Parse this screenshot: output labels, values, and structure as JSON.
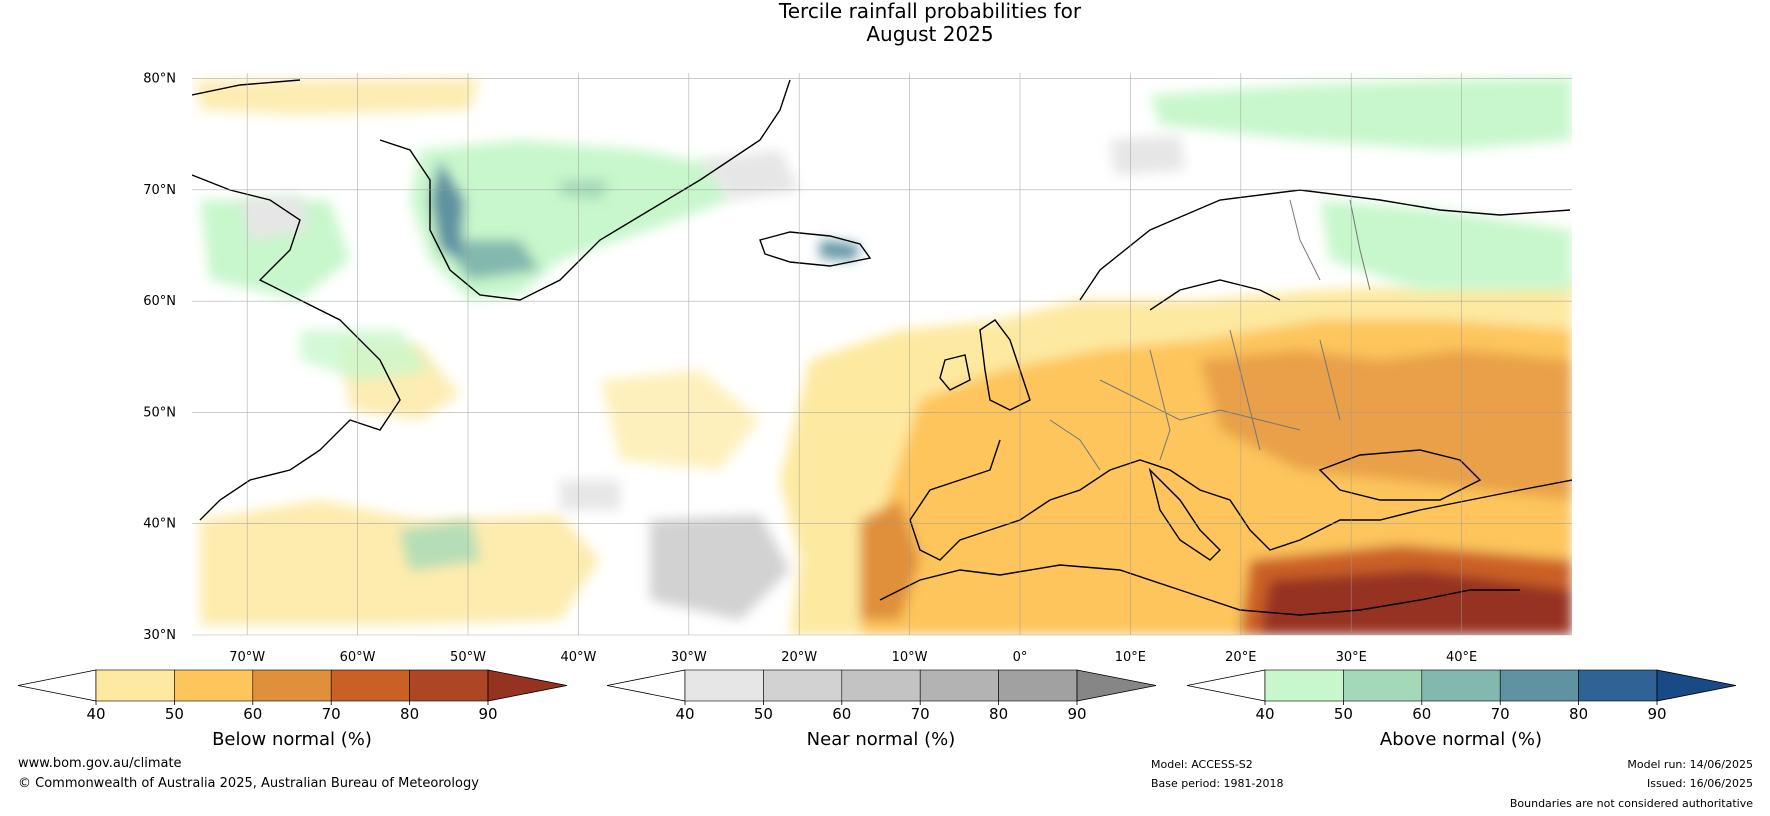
{
  "title": {
    "line1": "Tercile rainfall probabilities for",
    "line2": "August 2025"
  },
  "map": {
    "lon_range": [
      -75,
      50
    ],
    "lat_range": [
      30,
      80.5
    ],
    "lat_ticks": [
      "80°N",
      "70°N",
      "60°N",
      "50°N",
      "40°N",
      "30°N"
    ],
    "lon_ticks": [
      "70°W",
      "60°W",
      "50°W",
      "40°W",
      "30°W",
      "20°W",
      "10°W",
      "0°",
      "10°E",
      "20°E",
      "30°E",
      "40°E"
    ],
    "grid": true
  },
  "colorbars": [
    {
      "label": "Below normal (%)",
      "ticks": [
        "40",
        "50",
        "60",
        "70",
        "80",
        "90"
      ],
      "colors": [
        "#ffffff",
        "#fde9a0",
        "#fdc55c",
        "#e08f3b",
        "#cb6027",
        "#ad4624",
        "#963220"
      ]
    },
    {
      "label": "Near normal (%)",
      "ticks": [
        "40",
        "50",
        "60",
        "70",
        "80",
        "90"
      ],
      "colors": [
        "#ffffff",
        "#e6e6e6",
        "#d2d2d2",
        "#c3c3c3",
        "#b3b3b3",
        "#a1a1a1",
        "#868686"
      ]
    },
    {
      "label": "Above normal (%)",
      "ticks": [
        "40",
        "50",
        "60",
        "70",
        "80",
        "90"
      ],
      "colors": [
        "#ffffff",
        "#c8f7cc",
        "#a3d9b9",
        "#82b8ae",
        "#5f93a1",
        "#2f6395",
        "#184b85"
      ]
    }
  ],
  "footer": {
    "website": "www.bom.gov.au/climate",
    "copyright": "© Commonwealth of Australia 2025, Australian Bureau of Meteorology",
    "model": "Model: ACCESS-S2",
    "base_period": "Base period: 1981-2018",
    "model_run": "Model run: 14/06/2025",
    "issued": "Issued: 16/06/2025",
    "disclaimer": "Boundaries are not considered authoritative"
  }
}
